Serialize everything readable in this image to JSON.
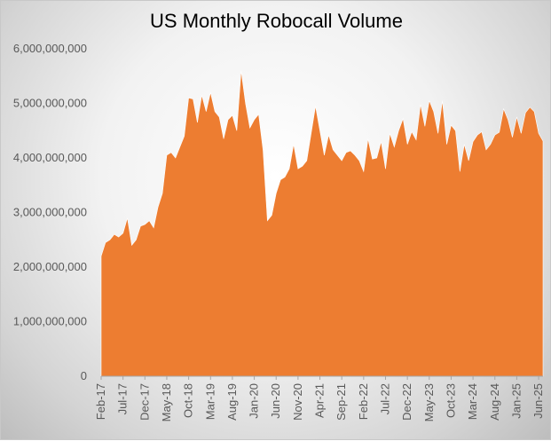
{
  "chart_data": {
    "type": "area",
    "title": "US Monthly Robocall Volume",
    "xlabel": "",
    "ylabel": "",
    "ylim": [
      0,
      6000000000
    ],
    "yticks": [
      0,
      1000000000,
      2000000000,
      3000000000,
      4000000000,
      5000000000,
      6000000000
    ],
    "ytick_labels": [
      "0",
      "1,000,000,000",
      "2,000,000,000",
      "3,000,000,000",
      "4,000,000,000",
      "5,000,000,000",
      "6,000,000,000"
    ],
    "xtick_labels": [
      "Feb-17",
      "Jul-17",
      "Dec-17",
      "May-18",
      "Oct-18",
      "Mar-19",
      "Aug-19",
      "Jan-20",
      "Jun-20",
      "Nov-20",
      "Apr-21",
      "Sep-21",
      "Feb-22",
      "Jul-22",
      "Dec-22",
      "May-23",
      "Oct-23",
      "Mar-24",
      "Aug-24",
      "Jan-25",
      "Jun-25"
    ],
    "x_start": "Feb-17",
    "x_end": "Jun-25",
    "fill_color": "#ED7D31",
    "grid": false,
    "values": [
      2200000000,
      2450000000,
      2500000000,
      2600000000,
      2550000000,
      2620000000,
      2900000000,
      2400000000,
      2500000000,
      2750000000,
      2780000000,
      2850000000,
      2720000000,
      3100000000,
      3350000000,
      4050000000,
      4100000000,
      4000000000,
      4200000000,
      4400000000,
      5100000000,
      5080000000,
      4650000000,
      5150000000,
      4850000000,
      5200000000,
      4850000000,
      4750000000,
      4350000000,
      4700000000,
      4780000000,
      4500000000,
      5600000000,
      5000000000,
      4550000000,
      4700000000,
      4800000000,
      4150000000,
      2850000000,
      2950000000,
      3350000000,
      3600000000,
      3650000000,
      3800000000,
      4250000000,
      3800000000,
      3850000000,
      3950000000,
      4450000000,
      4950000000,
      4500000000,
      4050000000,
      4420000000,
      4150000000,
      4050000000,
      3950000000,
      4100000000,
      4130000000,
      4050000000,
      3950000000,
      3750000000,
      4350000000,
      3980000000,
      4000000000,
      4300000000,
      3800000000,
      4450000000,
      4200000000,
      4500000000,
      4720000000,
      4250000000,
      4480000000,
      4330000000,
      4980000000,
      4580000000,
      5050000000,
      4850000000,
      4450000000,
      5050000000,
      4250000000,
      4600000000,
      4500000000,
      3750000000,
      4250000000,
      3950000000,
      4300000000,
      4420000000,
      4480000000,
      4150000000,
      4250000000,
      4420000000,
      4470000000,
      4900000000,
      4700000000,
      4380000000,
      4750000000,
      4450000000,
      4830000000,
      4930000000,
      4850000000,
      4450000000,
      4310000000
    ]
  }
}
